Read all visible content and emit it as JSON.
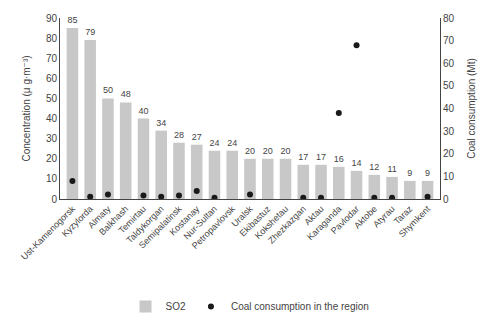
{
  "chart_data": {
    "type": "bar",
    "categories": [
      "Ust-Kamenogorsk",
      "Kyzylorda",
      "Almaty",
      "Balkhash",
      "Temirtau",
      "Taldykorgan",
      "Semipalatinsk",
      "Kostanay",
      "Nur-Sultan",
      "Petropavlovsk",
      "Uralsk",
      "Ekibastuz",
      "Kokshetau",
      "Zhezkazgan",
      "Aktau",
      "Karaganda",
      "Pavlodar",
      "Aktobe",
      "Atyrau",
      "Taraz",
      "Shymkent"
    ],
    "series": [
      {
        "name": "SO2",
        "type": "bar",
        "color": "#c8c8c8",
        "data_labels": true,
        "values": [
          85,
          79,
          50,
          48,
          40,
          34,
          28,
          27,
          24,
          24,
          20,
          20,
          20,
          17,
          17,
          16,
          14,
          12,
          11,
          9,
          9
        ]
      },
      {
        "name": "Coal consumption in the region",
        "type": "scatter",
        "marker": "circle",
        "color": "#1a1a1a",
        "axis": "y2",
        "values": [
          8,
          1,
          2,
          null,
          1.5,
          1,
          1.5,
          3.5,
          0.5,
          null,
          2,
          null,
          null,
          0.5,
          0.5,
          38,
          68,
          0.5,
          0.5,
          null,
          1
        ]
      }
    ],
    "ylabel": "Concentration (μ g·m⁻³)",
    "y2label": "Coal consumption (Mt)",
    "ylim": [
      0,
      90
    ],
    "yticks": [
      0,
      10,
      20,
      30,
      40,
      50,
      60,
      70,
      80,
      90
    ],
    "y2lim": [
      0,
      80
    ],
    "y2ticks": [
      0,
      10,
      20,
      30,
      40,
      50,
      60,
      70,
      80
    ],
    "grid": false,
    "legend": "bottom"
  }
}
